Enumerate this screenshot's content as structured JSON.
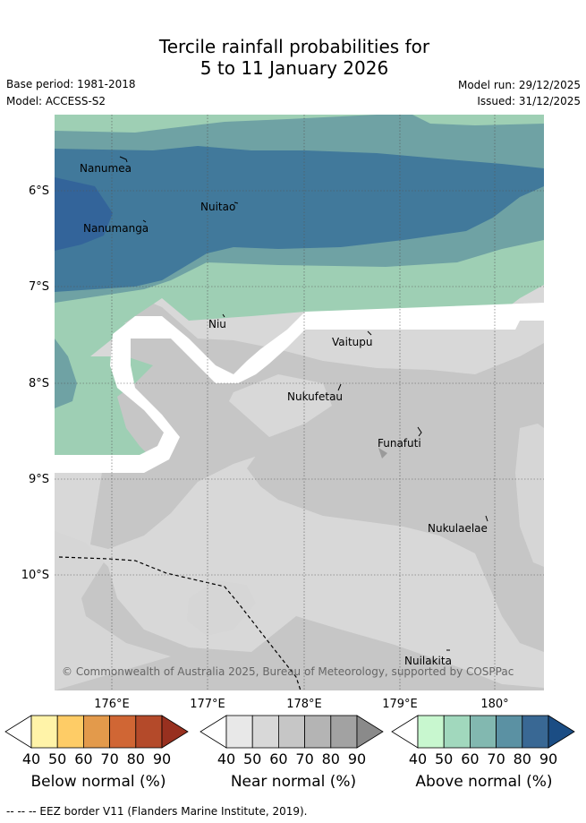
{
  "title": {
    "line1": "Tercile rainfall probabilities for",
    "line2": "5 to 11 January 2026"
  },
  "meta": {
    "base_period": "Base period: 1981-2018",
    "model": "Model: ACCESS-S2",
    "model_run": "Model run: 29/12/2025",
    "issued": "Issued: 31/12/2025"
  },
  "map": {
    "lat_labels": [
      "6°S",
      "7°S",
      "8°S",
      "9°S",
      "10°S"
    ],
    "lon_labels": [
      "176°E",
      "177°E",
      "178°E",
      "179°E",
      "180°"
    ],
    "places": [
      {
        "name": "Nanumea"
      },
      {
        "name": "Nuitao"
      },
      {
        "name": "Nanumanga"
      },
      {
        "name": "Niu"
      },
      {
        "name": "Vaitupu"
      },
      {
        "name": "Nukufetau"
      },
      {
        "name": "Funafuti"
      },
      {
        "name": "Nukulaelae"
      },
      {
        "name": "Nuilakita"
      }
    ],
    "copyright": "© Commonwealth of Australia 2025, Bureau of Meteorology, supported by COSPPac"
  },
  "colorbars": [
    {
      "label": "Below normal (%)",
      "ticks": [
        "40",
        "50",
        "60",
        "70",
        "80",
        "90"
      ],
      "colors": [
        "#fff3a8",
        "#fecc66",
        "#e39a4b",
        "#d06634",
        "#b44a2a",
        "#98301f"
      ]
    },
    {
      "label": "Near normal (%)",
      "ticks": [
        "40",
        "50",
        "60",
        "70",
        "80",
        "90"
      ],
      "colors": [
        "#e8e8e8",
        "#d8d8d8",
        "#c6c6c6",
        "#b4b4b4",
        "#a2a2a2",
        "#8a8a8a"
      ]
    },
    {
      "label": "Above normal (%)",
      "ticks": [
        "40",
        "50",
        "60",
        "70",
        "80",
        "90"
      ],
      "colors": [
        "#c8f7cf",
        "#a1d8bd",
        "#82b8b0",
        "#5b91a3",
        "#396894",
        "#1b4d84"
      ]
    }
  ],
  "footnote": "--  --  -- EEZ border V11 (Flanders Marine Institute, 2019)."
}
